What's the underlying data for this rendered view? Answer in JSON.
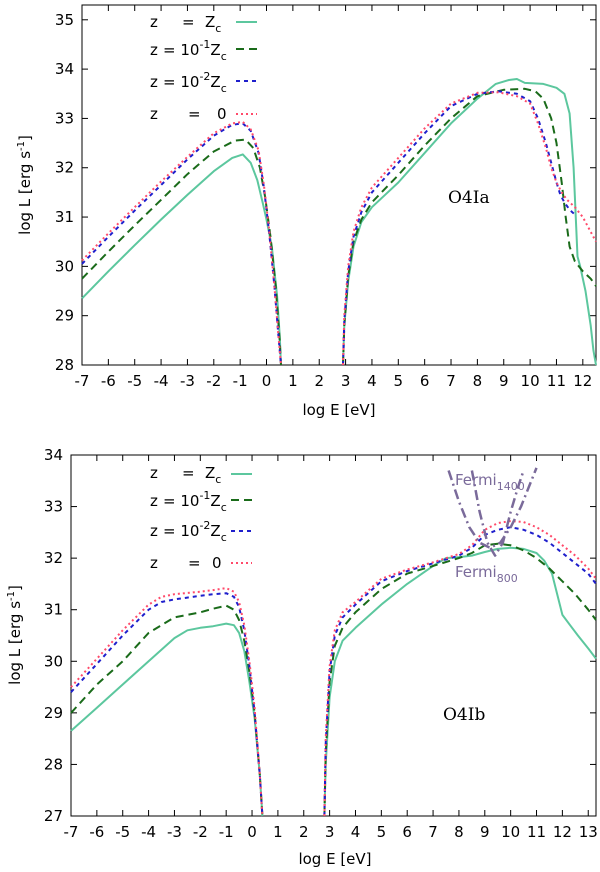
{
  "chart_data": [
    {
      "type": "line",
      "panel_label": "O4Ia",
      "xlabel": "log E [eV]",
      "ylabel": "log L [erg s",
      "ylabel_sup": "-1",
      "ylabel_end": "]",
      "xlim": [
        -7,
        12.5
      ],
      "ylim": [
        28,
        35.3
      ],
      "xticks": [
        "-7",
        "-6",
        "-5",
        "-4",
        "-3",
        "-2",
        "-1",
        "0",
        "1",
        "2",
        "3",
        "4",
        "5",
        "6",
        "7",
        "8",
        "9",
        "10",
        "11",
        "12"
      ],
      "yticks": [
        "28",
        "29",
        "30",
        "31",
        "32",
        "33",
        "34",
        "35"
      ],
      "legend": [
        {
          "pre": "z",
          "eq": "=",
          "main": "Z",
          "sub": "c",
          "sup": ""
        },
        {
          "pre": "z",
          "eq": "= 10",
          "sup": "-1",
          "main": "Z",
          "sub": "c"
        },
        {
          "pre": "z",
          "eq": "= 10",
          "sup": "-2",
          "main": "Z",
          "sub": "c"
        },
        {
          "pre": "z",
          "eq": "=",
          "main": "0",
          "sub": "",
          "sup": ""
        }
      ],
      "series": [
        {
          "name": "z = Zc",
          "color": "#5cc79e",
          "dash": "",
          "x": [
            -7,
            -6,
            -5,
            -4,
            -3,
            -2,
            -1.3,
            -0.9,
            -0.6,
            -0.35,
            -0.15,
            0,
            0.2,
            0.4,
            0.5,
            0.55
          ],
          "y": [
            29.35,
            29.9,
            30.43,
            30.95,
            31.45,
            31.93,
            32.2,
            32.27,
            32.1,
            31.75,
            31.3,
            30.95,
            30.4,
            29.4,
            28.6,
            28.0
          ]
        },
        {
          "name": "z = 0.1 Zc",
          "color": "#1a6b1a",
          "dash": "8,5",
          "x": [
            -7,
            -6,
            -5,
            -4,
            -3,
            -2,
            -1.2,
            -0.8,
            -0.5,
            -0.25,
            -0.05,
            0.15,
            0.35,
            0.5,
            0.55
          ],
          "y": [
            29.75,
            30.3,
            30.83,
            31.35,
            31.87,
            32.33,
            32.55,
            32.57,
            32.4,
            32.0,
            31.4,
            30.6,
            29.6,
            28.5,
            28.0
          ]
        },
        {
          "name": "z = 0.01 Zc",
          "color": "#1f1fcc",
          "dash": "4,4",
          "x": [
            -7,
            -6,
            -5,
            -4,
            -3,
            -2,
            -1.3,
            -0.9,
            -0.6,
            -0.3,
            -0.1,
            0.1,
            0.3,
            0.45,
            0.55
          ],
          "y": [
            30.05,
            30.6,
            31.13,
            31.65,
            32.17,
            32.65,
            32.87,
            32.9,
            32.75,
            32.3,
            31.6,
            30.7,
            29.6,
            28.6,
            28.0
          ]
        },
        {
          "name": "z = 0",
          "color": "#ff4a6a",
          "dash": "2,3",
          "x": [
            -7,
            -6,
            -5,
            -4,
            -3,
            -2,
            -1.3,
            -0.9,
            -0.6,
            -0.3,
            -0.1,
            0.1,
            0.3,
            0.45,
            0.55
          ],
          "y": [
            30.12,
            30.67,
            31.2,
            31.72,
            32.22,
            32.7,
            32.9,
            32.93,
            32.78,
            32.35,
            31.65,
            30.75,
            29.6,
            28.6,
            28.0
          ]
        },
        {
          "name": "z = Zc hi",
          "color": "#5cc79e",
          "dash": "",
          "x": [
            2.9,
            2.95,
            3.1,
            3.3,
            3.6,
            4,
            5,
            6,
            7,
            8,
            8.7,
            9.2,
            9.5,
            9.8,
            10.5,
            11,
            11.3,
            11.5,
            11.65,
            11.75,
            11.8,
            11.9,
            12.1,
            12.3,
            12.4,
            12.5
          ],
          "y": [
            28.0,
            28.8,
            29.7,
            30.4,
            30.9,
            31.2,
            31.7,
            32.3,
            32.9,
            33.4,
            33.7,
            33.78,
            33.8,
            33.72,
            33.7,
            33.62,
            33.5,
            33.1,
            32.0,
            30.8,
            30.2,
            30.0,
            29.5,
            28.8,
            28.3,
            28.0
          ]
        },
        {
          "name": "z = 0.1Zc hi",
          "color": "#1a6b1a",
          "dash": "8,5",
          "x": [
            2.9,
            2.95,
            3.1,
            3.3,
            3.6,
            4,
            5,
            6,
            7,
            8,
            9,
            9.8,
            10.2,
            10.5,
            10.8,
            11,
            11.2,
            11.35,
            11.5,
            11.7,
            12,
            12.3,
            12.5
          ],
          "y": [
            28.0,
            28.8,
            29.8,
            30.5,
            30.95,
            31.3,
            31.85,
            32.45,
            33.0,
            33.45,
            33.58,
            33.6,
            33.55,
            33.4,
            33.0,
            32.5,
            31.7,
            31.0,
            30.4,
            30.1,
            29.9,
            29.75,
            29.6
          ]
        },
        {
          "name": "z = 0.01Zc hi",
          "color": "#1f1fcc",
          "dash": "4,4",
          "x": [
            2.9,
            2.95,
            3.1,
            3.3,
            3.6,
            4,
            5,
            6,
            7,
            8,
            8.8,
            9.5,
            10,
            10.3,
            10.6,
            10.8,
            11,
            11.15,
            11.3,
            11.5,
            11.7
          ],
          "y": [
            28.0,
            28.9,
            29.9,
            30.6,
            31.1,
            31.5,
            32.1,
            32.7,
            33.25,
            33.5,
            33.55,
            33.5,
            33.35,
            33.0,
            32.5,
            32.1,
            31.7,
            31.45,
            31.3,
            31.15,
            31.05
          ]
        },
        {
          "name": "z = 0 hi",
          "color": "#ff4a6a",
          "dash": "2,3",
          "x": [
            2.9,
            2.95,
            3.1,
            3.3,
            3.6,
            4,
            5,
            6,
            7,
            8,
            8.8,
            9.5,
            10,
            10.3,
            10.6,
            10.8,
            11,
            11.2,
            11.4,
            11.7,
            12,
            12.3,
            12.5
          ],
          "y": [
            28.0,
            29.0,
            30.0,
            30.7,
            31.2,
            31.6,
            32.2,
            32.8,
            33.3,
            33.52,
            33.53,
            33.45,
            33.3,
            32.9,
            32.4,
            32.0,
            31.7,
            31.5,
            31.35,
            31.2,
            31.0,
            30.7,
            30.5
          ]
        }
      ]
    },
    {
      "type": "line",
      "panel_label": "O4Ib",
      "xlabel": "log E [eV]",
      "ylabel": "log L [erg s",
      "ylabel_sup": "-1",
      "ylabel_end": "]",
      "xlim": [
        -7,
        13.3
      ],
      "ylim": [
        27,
        34
      ],
      "xticks": [
        "-7",
        "-6",
        "-5",
        "-4",
        "-3",
        "-2",
        "-1",
        "0",
        "1",
        "2",
        "3",
        "4",
        "5",
        "6",
        "7",
        "8",
        "9",
        "10",
        "11",
        "12",
        "13"
      ],
      "yticks": [
        "27",
        "28",
        "29",
        "30",
        "31",
        "32",
        "33",
        "34"
      ],
      "legend": [
        {
          "pre": "z",
          "eq": "=",
          "main": "Z",
          "sub": "c",
          "sup": ""
        },
        {
          "pre": "z",
          "eq": "= 10",
          "sup": "-1",
          "main": "Z",
          "sub": "c"
        },
        {
          "pre": "z",
          "eq": "= 10",
          "sup": "-2",
          "main": "Z",
          "sub": "c"
        },
        {
          "pre": "z",
          "eq": "=",
          "main": "0",
          "sub": "",
          "sup": ""
        }
      ],
      "annotations": [
        {
          "text": "Fermi",
          "sub": "1400"
        },
        {
          "text": "Fermi",
          "sub": "800"
        }
      ],
      "series": [
        {
          "name": "z = Zc",
          "color": "#5cc79e",
          "dash": "",
          "x": [
            -7,
            -6,
            -5,
            -4,
            -3,
            -2.5,
            -2,
            -1.5,
            -1,
            -0.7,
            -0.5,
            -0.3,
            -0.1,
            0.1,
            0.3,
            0.4
          ],
          "y": [
            28.65,
            29.1,
            29.55,
            30.0,
            30.45,
            30.6,
            30.65,
            30.68,
            30.73,
            30.7,
            30.55,
            30.2,
            29.6,
            28.9,
            27.8,
            27.0
          ]
        },
        {
          "name": "z = 0.1 Zc",
          "color": "#1a6b1a",
          "dash": "8,5",
          "x": [
            -7,
            -6,
            -5,
            -4,
            -3,
            -2,
            -1.5,
            -1,
            -0.7,
            -0.5,
            -0.3,
            -0.1,
            0.1,
            0.3,
            0.4
          ],
          "y": [
            29.0,
            29.55,
            30.0,
            30.55,
            30.85,
            30.95,
            31.02,
            31.08,
            31.0,
            30.8,
            30.4,
            29.8,
            29.0,
            27.8,
            27.0
          ]
        },
        {
          "name": "z = 0.01 Zc",
          "color": "#1f1fcc",
          "dash": "4,4",
          "x": [
            -7,
            -6,
            -5,
            -4,
            -3.5,
            -3,
            -2,
            -1.5,
            -1,
            -0.7,
            -0.5,
            -0.3,
            -0.1,
            0.1,
            0.3,
            0.4
          ],
          "y": [
            29.4,
            29.95,
            30.5,
            31.0,
            31.15,
            31.2,
            31.27,
            31.3,
            31.32,
            31.25,
            31.05,
            30.6,
            29.9,
            29.0,
            27.8,
            27.0
          ]
        },
        {
          "name": "z = 0",
          "color": "#ff4a6a",
          "dash": "2,3",
          "x": [
            -7,
            -6,
            -5,
            -4,
            -3.5,
            -3,
            -2,
            -1.5,
            -1,
            -0.7,
            -0.5,
            -0.3,
            -0.1,
            0.1,
            0.3,
            0.4
          ],
          "y": [
            29.5,
            30.05,
            30.6,
            31.1,
            31.25,
            31.3,
            31.35,
            31.38,
            31.42,
            31.35,
            31.15,
            30.7,
            30.0,
            29.1,
            27.8,
            27.0
          ]
        },
        {
          "name": "z = Zc hi",
          "color": "#5cc79e",
          "dash": "",
          "x": [
            2.8,
            2.85,
            3.0,
            3.2,
            3.5,
            4,
            5,
            6,
            7,
            7.5,
            8,
            8.5,
            9,
            9.5,
            10,
            10.5,
            11,
            11.3,
            11.6,
            11.8,
            12,
            12.3,
            12.6,
            13,
            13.3
          ],
          "y": [
            27.0,
            28.0,
            29.3,
            30.0,
            30.4,
            30.65,
            31.1,
            31.5,
            31.85,
            32.0,
            32.02,
            32.05,
            32.12,
            32.18,
            32.2,
            32.18,
            32.1,
            31.95,
            31.7,
            31.3,
            30.9,
            30.7,
            30.5,
            30.25,
            30.05
          ]
        },
        {
          "name": "z = 0.1Zc hi",
          "color": "#1a6b1a",
          "dash": "8,5",
          "x": [
            2.8,
            2.85,
            3.0,
            3.2,
            3.5,
            4,
            5,
            6,
            7,
            8,
            8.5,
            9,
            9.5,
            10,
            10.5,
            11,
            11.5,
            12,
            12.5,
            13,
            13.3
          ],
          "y": [
            27.0,
            28.2,
            29.6,
            30.3,
            30.65,
            30.95,
            31.4,
            31.7,
            31.85,
            32.0,
            32.1,
            32.25,
            32.28,
            32.25,
            32.15,
            32.0,
            31.8,
            31.55,
            31.3,
            31.0,
            30.8
          ]
        },
        {
          "name": "z = 0.01Zc hi",
          "color": "#1f1fcc",
          "dash": "4,4",
          "x": [
            2.8,
            2.85,
            3.0,
            3.2,
            3.5,
            4,
            5,
            6,
            7,
            8,
            8.5,
            9,
            9.5,
            10,
            10.5,
            11,
            11.5,
            12,
            12.5,
            13,
            13.3
          ],
          "y": [
            27.0,
            28.4,
            29.8,
            30.5,
            30.85,
            31.1,
            31.55,
            31.75,
            31.9,
            32.05,
            32.2,
            32.45,
            32.55,
            32.6,
            32.55,
            32.45,
            32.3,
            32.1,
            31.9,
            31.7,
            31.5
          ]
        },
        {
          "name": "z = 0 hi",
          "color": "#ff4a6a",
          "dash": "2,3",
          "x": [
            2.8,
            2.85,
            3.0,
            3.2,
            3.5,
            4,
            5,
            6,
            7,
            8,
            8.5,
            9,
            9.5,
            10,
            10.5,
            11,
            11.5,
            12,
            12.5,
            13,
            13.3
          ],
          "y": [
            27.0,
            28.5,
            29.9,
            30.6,
            30.95,
            31.15,
            31.6,
            31.78,
            31.92,
            32.08,
            32.25,
            32.55,
            32.68,
            32.72,
            32.7,
            32.6,
            32.45,
            32.25,
            32.05,
            31.8,
            31.6
          ]
        },
        {
          "name": "Fermi 1400",
          "color": "#7a6a9a",
          "dash": "10,4,2,4",
          "x": [
            7.6,
            8.0,
            8.4,
            8.8,
            9.2,
            9.6,
            10.0,
            10.4,
            10.8,
            11.0
          ],
          "y": [
            33.7,
            33.1,
            32.6,
            32.3,
            32.2,
            32.3,
            32.6,
            33.0,
            33.5,
            33.75
          ]
        },
        {
          "name": "Fermi 800",
          "color": "#7a6a9a",
          "dash": "10,4,2,4",
          "x": [
            8.5,
            8.8,
            9.1,
            9.4,
            9.7,
            10.0,
            10.3,
            10.5
          ],
          "y": [
            33.7,
            32.9,
            32.3,
            32.05,
            32.3,
            32.9,
            33.4,
            33.7
          ]
        }
      ]
    }
  ]
}
